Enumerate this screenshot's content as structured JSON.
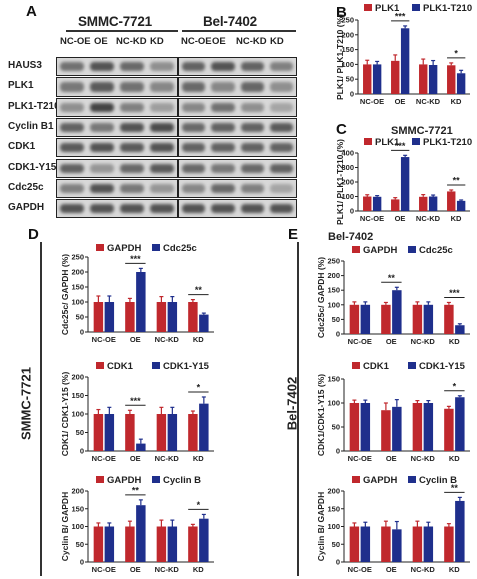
{
  "panels": {
    "A": "A",
    "B": "B",
    "C": "C",
    "D": "D",
    "E": "E"
  },
  "blot": {
    "cell_line_1": "SMMC-7721",
    "cell_line_2": "Bel-7402",
    "lanes_1": [
      "NC-OE",
      "OE",
      "NC-KD",
      "KD"
    ],
    "lanes_2": [
      "NC-OE",
      "OE",
      "NC-KD",
      "KD"
    ],
    "proteins": [
      "HAUS3",
      "PLK1",
      "PLK1-T210",
      "Cyclin B1",
      "CDK1",
      "CDK1-Y15",
      "Cdc25c",
      "GAPDH"
    ]
  },
  "side_labels": {
    "D": "SMMC-7721",
    "E": "Bel-7402"
  },
  "chart_titles": {
    "C": "SMMC-7721",
    "E": "Bel-7402"
  },
  "colors": {
    "red": "#c0282d",
    "blue": "#1f2f8c"
  },
  "chart_data": [
    {
      "id": "B",
      "type": "bar",
      "categories": [
        "NC-OE",
        "OE",
        "NC-KD",
        "KD"
      ],
      "ylabel": "PLK1/ PLK1-T210 (%)",
      "ylim": [
        0,
        250
      ],
      "yticks": [
        0,
        50,
        100,
        150,
        200,
        250
      ],
      "series": [
        {
          "name": "PLK1",
          "color": "#c0282d",
          "values": [
            100,
            112,
            100,
            97
          ],
          "errors": [
            14,
            20,
            18,
            8
          ]
        },
        {
          "name": "PLK1-T210",
          "color": "#1f2f8c",
          "values": [
            100,
            222,
            98,
            70
          ],
          "errors": [
            10,
            8,
            15,
            10
          ]
        }
      ],
      "significance": [
        {
          "category": "OE",
          "label": "***"
        },
        {
          "category": "KD",
          "label": "*"
        }
      ]
    },
    {
      "id": "C",
      "type": "bar",
      "categories": [
        "NC-OE",
        "OE",
        "NC-KD",
        "KD"
      ],
      "ylabel": "PLK1/ PLK1-T210 (%)",
      "ylim": [
        0,
        400
      ],
      "yticks": [
        0,
        100,
        200,
        300,
        400
      ],
      "series": [
        {
          "name": "PLK1",
          "color": "#c0282d",
          "values": [
            100,
            80,
            98,
            135
          ],
          "errors": [
            12,
            12,
            15,
            10
          ]
        },
        {
          "name": "PLK1-T210",
          "color": "#1f2f8c",
          "values": [
            98,
            372,
            100,
            70
          ],
          "errors": [
            8,
            12,
            10,
            6
          ]
        }
      ],
      "significance": [
        {
          "category": "OE",
          "label": "***"
        },
        {
          "category": "KD",
          "label": "**"
        }
      ]
    },
    {
      "id": "D1",
      "type": "bar",
      "categories": [
        "NC-OE",
        "OE",
        "NC-KD",
        "KD"
      ],
      "ylabel": "Cdc25c/ GAPDH (%)",
      "ylim": [
        0,
        250
      ],
      "yticks": [
        0,
        50,
        100,
        150,
        200,
        250
      ],
      "series": [
        {
          "name": "GAPDH",
          "color": "#c0282d",
          "values": [
            100,
            100,
            100,
            100
          ],
          "errors": [
            20,
            12,
            18,
            8
          ]
        },
        {
          "name": "Cdc25c",
          "color": "#1f2f8c",
          "values": [
            100,
            200,
            100,
            58
          ],
          "errors": [
            20,
            12,
            18,
            5
          ]
        }
      ],
      "significance": [
        {
          "category": "OE",
          "label": "***"
        },
        {
          "category": "KD",
          "label": "**"
        }
      ]
    },
    {
      "id": "D2",
      "type": "bar",
      "categories": [
        "NC-OE",
        "OE",
        "NC-KD",
        "KD"
      ],
      "ylabel": "CDK1/ CDK1-Y15 (%)",
      "ylim": [
        0,
        200
      ],
      "yticks": [
        0,
        50,
        100,
        150,
        200
      ],
      "series": [
        {
          "name": "CDK1",
          "color": "#c0282d",
          "values": [
            100,
            100,
            100,
            100
          ],
          "errors": [
            12,
            10,
            18,
            8
          ]
        },
        {
          "name": "CDK1-Y15",
          "color": "#1f2f8c",
          "values": [
            100,
            20,
            100,
            128
          ],
          "errors": [
            18,
            12,
            18,
            18
          ]
        }
      ],
      "significance": [
        {
          "category": "OE",
          "label": "***"
        },
        {
          "category": "KD",
          "label": "*"
        }
      ]
    },
    {
      "id": "D3",
      "type": "bar",
      "categories": [
        "NC-OE",
        "OE",
        "NC-KD",
        "KD"
      ],
      "ylabel": "Cyclin B/ GAPDH",
      "ylim": [
        0,
        200
      ],
      "yticks": [
        0,
        50,
        100,
        150,
        200
      ],
      "series": [
        {
          "name": "GAPDH",
          "color": "#c0282d",
          "values": [
            100,
            100,
            100,
            100
          ],
          "errors": [
            10,
            15,
            18,
            6
          ]
        },
        {
          "name": "Cyclin B",
          "color": "#1f2f8c",
          "values": [
            100,
            160,
            100,
            122
          ],
          "errors": [
            10,
            15,
            18,
            12
          ]
        }
      ],
      "significance": [
        {
          "category": "OE",
          "label": "**"
        },
        {
          "category": "KD",
          "label": "*"
        }
      ]
    },
    {
      "id": "E1",
      "type": "bar",
      "categories": [
        "NC-OE",
        "OE",
        "NC-KD",
        "KD"
      ],
      "ylabel": "Cdc25c/ GAPDH (%)",
      "ylim": [
        0,
        250
      ],
      "yticks": [
        0,
        50,
        100,
        150,
        200,
        250
      ],
      "series": [
        {
          "name": "GAPDH",
          "color": "#c0282d",
          "values": [
            100,
            100,
            100,
            100
          ],
          "errors": [
            10,
            8,
            10,
            8
          ]
        },
        {
          "name": "Cdc25c",
          "color": "#1f2f8c",
          "values": [
            100,
            150,
            100,
            30
          ],
          "errors": [
            10,
            10,
            10,
            5
          ]
        }
      ],
      "significance": [
        {
          "category": "OE",
          "label": "**"
        },
        {
          "category": "KD",
          "label": "***"
        }
      ]
    },
    {
      "id": "E2",
      "type": "bar",
      "categories": [
        "NC-OE",
        "OE",
        "NC-KD",
        "KD"
      ],
      "ylabel": "CDK1/CDK1-Y15 (%)",
      "ylim": [
        0,
        150
      ],
      "yticks": [
        0,
        50,
        100,
        150
      ],
      "series": [
        {
          "name": "CDK1",
          "color": "#c0282d",
          "values": [
            100,
            85,
            100,
            88
          ],
          "errors": [
            6,
            15,
            5,
            5
          ]
        },
        {
          "name": "CDK1-Y15",
          "color": "#1f2f8c",
          "values": [
            100,
            92,
            100,
            112
          ],
          "errors": [
            6,
            15,
            5,
            3
          ]
        }
      ],
      "significance": [
        {
          "category": "KD",
          "label": "*"
        }
      ]
    },
    {
      "id": "E3",
      "type": "bar",
      "categories": [
        "NC-OE",
        "OE",
        "NC-KD",
        "KD"
      ],
      "ylabel": "Cyclin B/ GAPDH",
      "ylim": [
        0,
        200
      ],
      "yticks": [
        0,
        50,
        100,
        150,
        200
      ],
      "series": [
        {
          "name": "GAPDH",
          "color": "#c0282d",
          "values": [
            100,
            100,
            100,
            100
          ],
          "errors": [
            10,
            15,
            15,
            8
          ]
        },
        {
          "name": "Cyclin B",
          "color": "#1f2f8c",
          "values": [
            100,
            92,
            100,
            172
          ],
          "errors": [
            12,
            22,
            12,
            10
          ]
        }
      ],
      "significance": [
        {
          "category": "KD",
          "label": "**"
        }
      ]
    }
  ]
}
